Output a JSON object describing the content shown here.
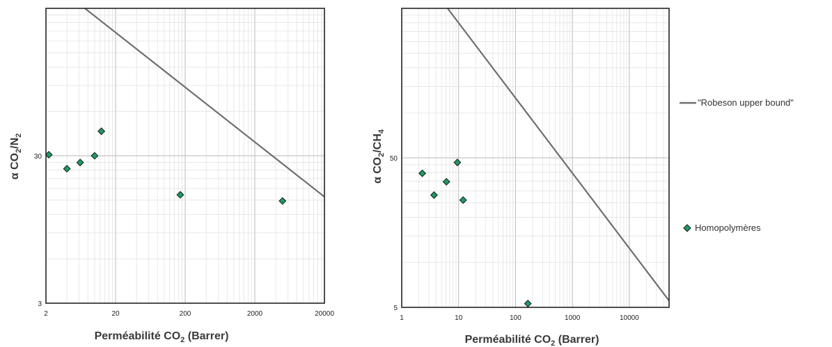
{
  "colors": {
    "marker_fill": "#1f9a63",
    "marker_stroke": "#1a1a1a",
    "line": "#6e6e6e",
    "grid_major": "#b9b9b9",
    "grid_minor": "#e2e2e2"
  },
  "legend": {
    "line_label": "\"Robeson upper bound\"",
    "marker_label": "Homopolymères"
  },
  "chart_data": [
    {
      "type": "scatter",
      "title": "",
      "xlabel": "Perméabilité CO₂ (Barrer)",
      "ylabel": "α CO₂/N₂",
      "xscale": "log",
      "yscale": "log",
      "xlim": [
        2,
        20000
      ],
      "ylim": [
        3,
        300
      ],
      "xticks": [
        2,
        20,
        200,
        2000,
        20000
      ],
      "xtick_labels": [
        "2",
        "20",
        "200",
        "2000",
        "20000"
      ],
      "yticks": [
        3,
        30
      ],
      "ytick_labels": [
        "3",
        "30"
      ],
      "grid": true,
      "series": [
        {
          "kind": "line",
          "name": "\"Robeson upper bound\"",
          "x": [
            7.25,
            20000
          ],
          "y": [
            300,
            15.8
          ]
        },
        {
          "kind": "points",
          "name": "Homopolymères",
          "x": [
            2.2,
            4.0,
            6.2,
            10.0,
            12.5,
            170,
            5000
          ],
          "y": [
            30.5,
            24.5,
            27,
            30,
            44,
            16.3,
            14.8
          ]
        }
      ]
    },
    {
      "type": "scatter",
      "title": "",
      "xlabel": "Perméabilité CO₂ (Barrer)",
      "ylabel": "α CO₂/CH₄",
      "xscale": "log",
      "yscale": "log",
      "xlim": [
        1,
        50000
      ],
      "ylim": [
        5,
        500
      ],
      "xticks": [
        1,
        10,
        100,
        1000,
        10000
      ],
      "xtick_labels": [
        "1",
        "10",
        "100",
        "1000",
        "10000"
      ],
      "yticks": [
        5,
        50
      ],
      "ytick_labels": [
        "5",
        "50"
      ],
      "grid": true,
      "series": [
        {
          "kind": "line",
          "name": "\"Robeson upper bound\"",
          "x": [
            6.4,
            50000
          ],
          "y": [
            500,
            5.54
          ]
        },
        {
          "kind": "points",
          "name": "Homopolymères",
          "x": [
            2.3,
            3.7,
            6.1,
            9.5,
            12,
            165
          ],
          "y": [
            39.4,
            28.2,
            34.6,
            46.6,
            26.1,
            5.3
          ]
        }
      ]
    }
  ],
  "axis_texts": {
    "left": {
      "xlabel_main": "Perméabilité CO",
      "xlabel_sub": "2",
      "xlabel_tail": " (Barrer)",
      "ylabel_main": "α CO",
      "ylabel_sub1": "2",
      "ylabel_mid": "/N",
      "ylabel_sub2": "2"
    },
    "right": {
      "xlabel_main": "Perméabilité CO",
      "xlabel_sub": "2",
      "xlabel_tail": " (Barrer)",
      "ylabel_main": "α CO",
      "ylabel_sub1": "2",
      "ylabel_mid": "/CH",
      "ylabel_sub2": "4"
    }
  }
}
